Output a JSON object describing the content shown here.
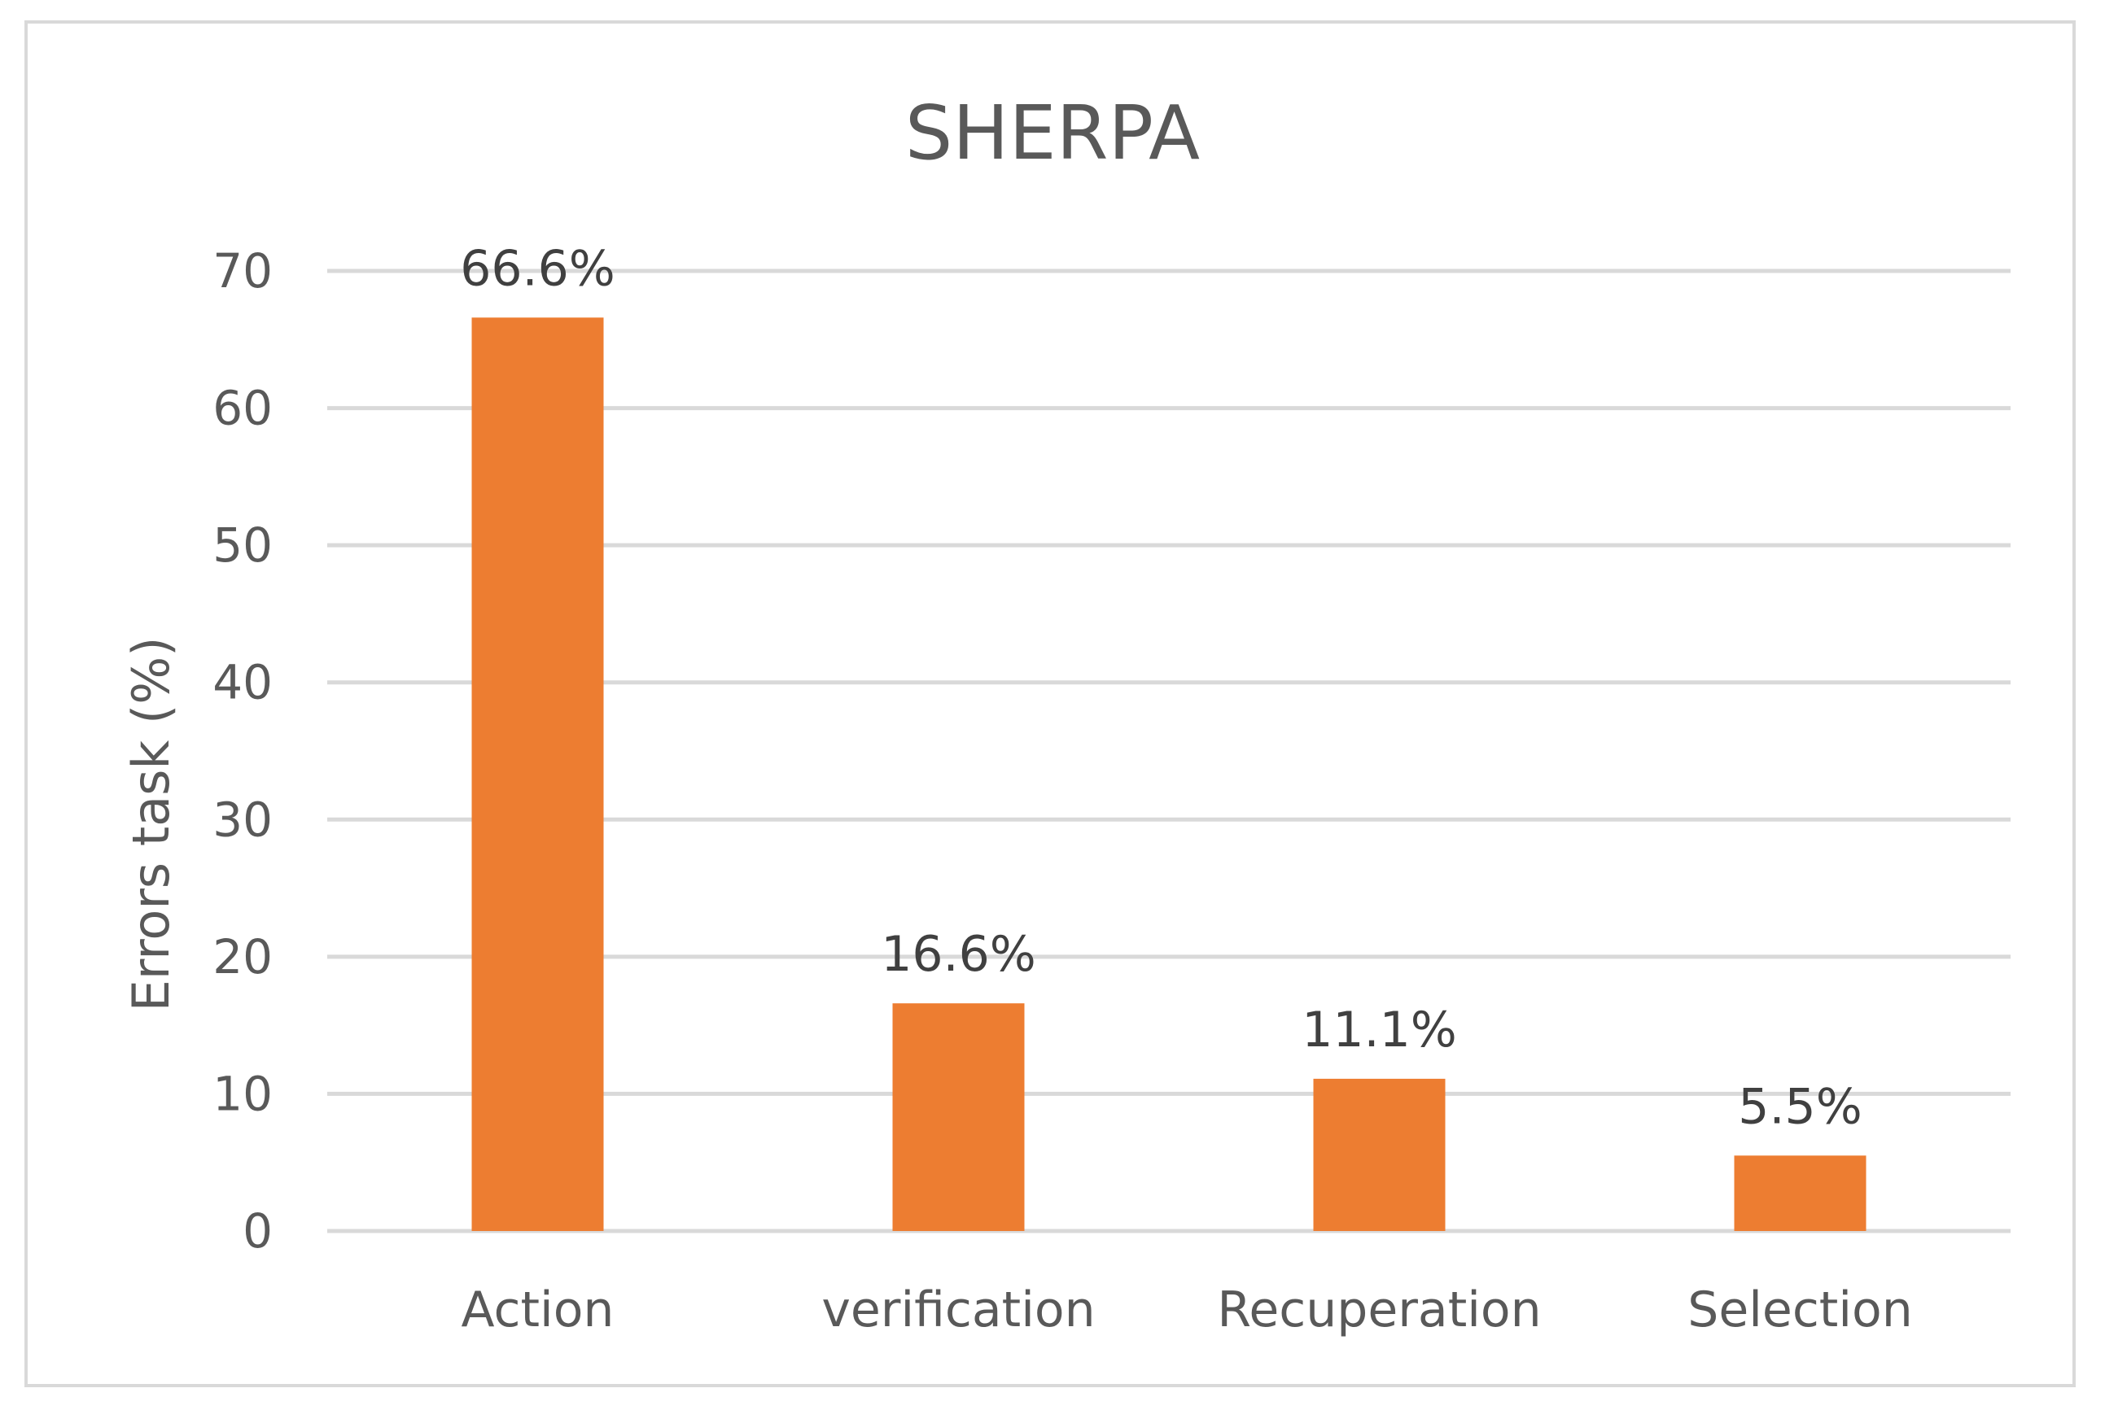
{
  "chart_data": {
    "type": "bar",
    "title": "SHERPA",
    "xlabel": "",
    "ylabel": "Errors task (%)",
    "categories": [
      "Action",
      "verification",
      "Recuperation",
      "Selection"
    ],
    "values": [
      66.6,
      16.6,
      11.1,
      5.5
    ],
    "data_labels": [
      "66.6%",
      "16.6%",
      "11.1%",
      "5.5%"
    ],
    "ylim": [
      0,
      70
    ],
    "yticks": [
      0,
      10,
      20,
      30,
      40,
      50,
      60,
      70
    ],
    "grid": true,
    "legend": "none",
    "bar_color": "#ED7D31",
    "grid_color": "#D9D9D9"
  }
}
